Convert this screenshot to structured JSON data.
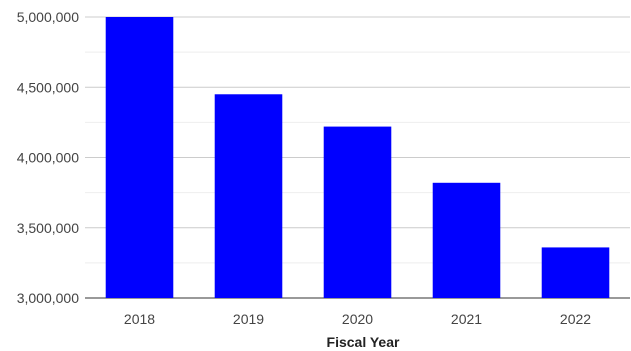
{
  "chart_data": {
    "type": "bar",
    "title": "",
    "xlabel": "Fiscal Year",
    "ylabel": "",
    "categories": [
      "2018",
      "2019",
      "2020",
      "2021",
      "2022"
    ],
    "values": [
      5000000,
      4450000,
      4220000,
      3820000,
      3360000
    ],
    "ylim": [
      3000000,
      5000000
    ],
    "yticks": [
      3000000,
      3500000,
      4000000,
      4500000,
      5000000
    ],
    "ytick_labels": [
      "3,000,000",
      "3,500,000",
      "4,000,000",
      "4,500,000",
      "5,000,000"
    ],
    "grid": true,
    "legend": "none",
    "bar_color": "#0000ff",
    "grid_color": "#dddddd"
  }
}
